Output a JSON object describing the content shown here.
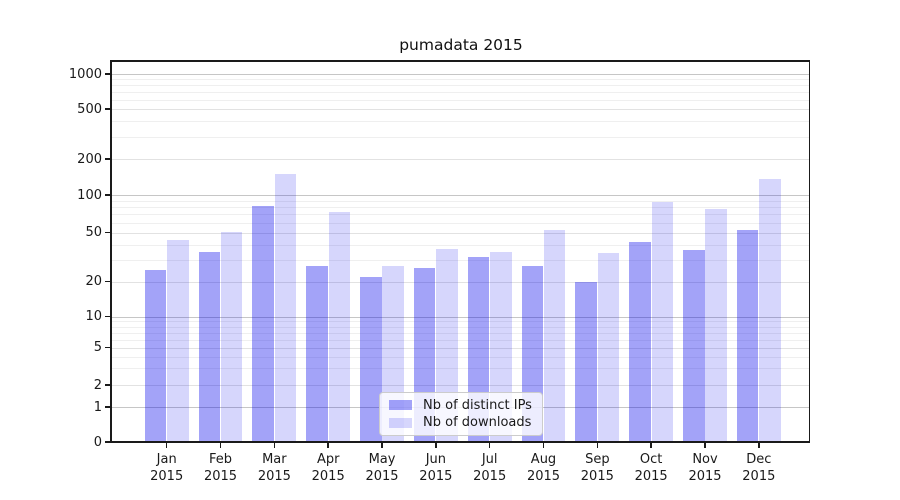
{
  "title": "pumadata 2015",
  "chart_data": {
    "type": "bar",
    "title": "pumadata 2015",
    "x_categories": [
      "Jan",
      "Feb",
      "Mar",
      "Apr",
      "May",
      "Jun",
      "Jul",
      "Aug",
      "Sep",
      "Oct",
      "Nov",
      "Dec"
    ],
    "x_category_year_line": "2015",
    "series": [
      {
        "name": "Nb of distinct IPs",
        "color": "rgba(0,0,235,0.36)",
        "values": [
          25,
          35,
          82,
          27,
          22,
          26,
          32,
          27,
          20,
          42,
          36,
          53
        ]
      },
      {
        "name": "Nb of downloads",
        "color": "rgba(0,0,235,0.16)",
        "values": [
          44,
          51,
          150,
          73,
          27,
          37,
          35,
          53,
          34,
          88,
          77,
          135
        ]
      }
    ],
    "y_axis": {
      "scale": "asinh-log (symlog-like, linear 0–1 then log)",
      "major_tick_labels": [
        "0",
        "1",
        "2",
        "5",
        "10",
        "20",
        "50",
        "100",
        "200",
        "500",
        "1000"
      ],
      "major_ticks": [
        0,
        1,
        2,
        5,
        10,
        20,
        50,
        100,
        200,
        500,
        1000
      ],
      "power_of_ten_ticks": [
        1,
        10,
        100,
        1000
      ],
      "minor_ticks": [
        3,
        4,
        6,
        7,
        8,
        9,
        30,
        40,
        60,
        70,
        80,
        90,
        300,
        400,
        600,
        700,
        800,
        900
      ],
      "ylim": [
        0,
        1280
      ]
    },
    "grid": "on (major darker, minor lighter)",
    "legend_position": "lower center"
  },
  "colors": {
    "bar_distinct_ips_on_white": "#a6a6f6",
    "bar_downloads_on_white": "#d9d9fa",
    "grid_power_of_ten": "#c6c6c6",
    "grid_labeled": "#e2e2e2",
    "grid_minor": "#efefef",
    "spine": "#1a1a1a",
    "text": "#1a1a1a",
    "background": "#ffffff"
  }
}
